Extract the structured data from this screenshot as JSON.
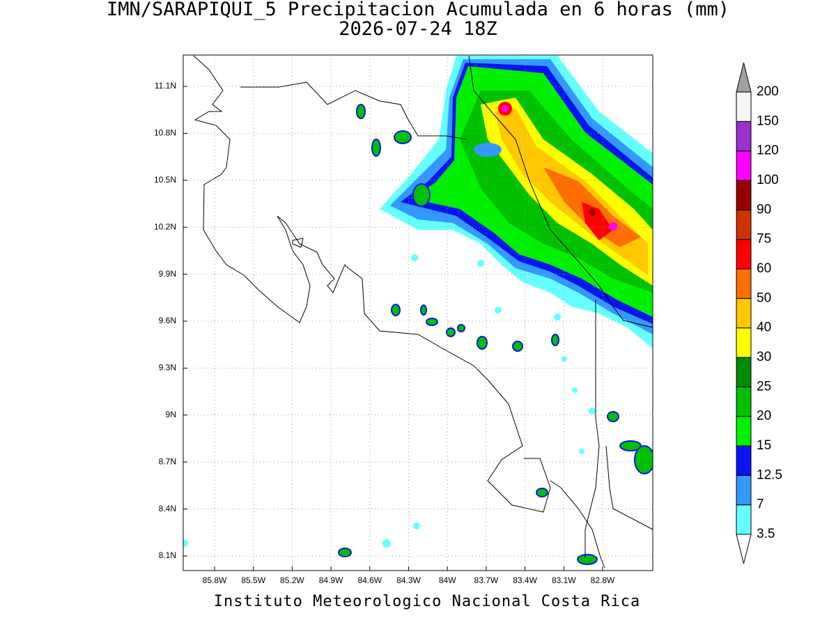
{
  "title": "IMN/SARAPIQUI_5 Precipitacion Acumulada en 6 horas (mm)",
  "subtitle": "2026-07-24 18Z",
  "footer": "Instituto Meteorologico Nacional Costa Rica",
  "map": {
    "lon_labels": [
      "85.8W",
      "85.5W",
      "85.2W",
      "84.9W",
      "84.6W",
      "84.3W",
      "84W",
      "83.7W",
      "83.4W",
      "83.1W",
      "82.8W"
    ],
    "lat_labels": [
      "11.1N",
      "10.8N",
      "10.5N",
      "10.2N",
      "9.9N",
      "9.6N",
      "9.3N",
      "9N",
      "8.7N",
      "8.4N",
      "8.1N"
    ]
  },
  "colorbar": {
    "levels": [
      3.5,
      7,
      12.5,
      15,
      20,
      25,
      30,
      40,
      50,
      60,
      75,
      90,
      100,
      120,
      150,
      200
    ],
    "colors": [
      "#66ffff",
      "#3399ff",
      "#0a14f0",
      "#00f000",
      "#00c000",
      "#008c00",
      "#ffff00",
      "#ffc800",
      "#ff6e00",
      "#ff0000",
      "#cc3300",
      "#960000",
      "#ff00ff",
      "#9933cc",
      "#f5f5f5"
    ],
    "under_color": "#ffffff",
    "over_color": "#a0a0a0"
  }
}
